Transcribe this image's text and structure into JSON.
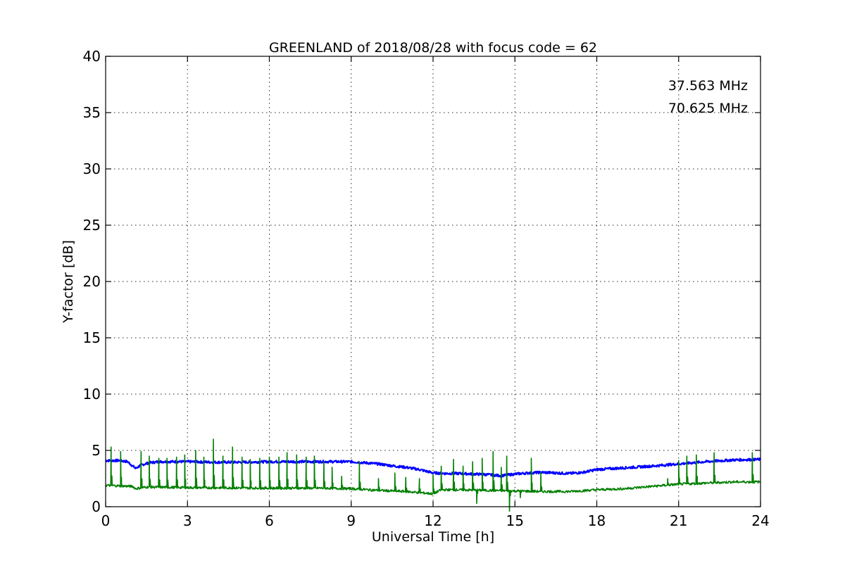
{
  "chart_data": {
    "type": "line",
    "title": "GREENLAND of 2018/08/28 with focus code = 62",
    "xlabel": "Universal Time [h]",
    "ylabel": "Y-factor [dB]",
    "xlim": [
      0,
      24
    ],
    "ylim": [
      0,
      40
    ],
    "x_ticks": [
      0,
      3,
      6,
      9,
      12,
      15,
      18,
      21,
      24
    ],
    "y_ticks": [
      0,
      5,
      10,
      15,
      20,
      25,
      30,
      35,
      40
    ],
    "grid": true,
    "legend_position": "top-right",
    "series": [
      {
        "name": "37.563 MHz",
        "color": "#0000ff",
        "x": [
          0.0,
          0.5,
          0.8,
          1.0,
          1.1,
          1.3,
          1.6,
          2.0,
          3.0,
          4.0,
          5.0,
          6.0,
          7.0,
          8.0,
          9.0,
          10.0,
          10.6,
          11.0,
          11.5,
          12.0,
          12.5,
          13.0,
          13.5,
          14.0,
          14.5,
          15.0,
          15.5,
          16.0,
          16.5,
          17.0,
          17.5,
          18.0,
          19.0,
          20.0,
          21.0,
          22.0,
          23.0,
          24.0
        ],
        "y": [
          4.1,
          4.1,
          4.0,
          3.6,
          3.4,
          3.7,
          3.9,
          4.0,
          4.0,
          3.95,
          3.95,
          4.0,
          4.0,
          4.0,
          4.0,
          3.8,
          3.6,
          3.5,
          3.3,
          3.0,
          2.95,
          2.95,
          2.9,
          2.85,
          2.75,
          2.9,
          3.0,
          3.05,
          3.0,
          2.95,
          3.05,
          3.3,
          3.45,
          3.6,
          3.8,
          4.0,
          4.15,
          4.2
        ]
      },
      {
        "name": "70.625 MHz",
        "color": "#007f00",
        "x": [
          0.0,
          0.5,
          1.0,
          1.1,
          1.5,
          3.0,
          6.0,
          8.0,
          9.0,
          10.0,
          11.0,
          11.5,
          12.0,
          12.3,
          13.0,
          14.0,
          15.0,
          16.0,
          17.0,
          18.0,
          19.0,
          20.0,
          21.0,
          22.0,
          23.0,
          24.0
        ],
        "y": [
          1.9,
          1.85,
          1.8,
          1.6,
          1.75,
          1.7,
          1.65,
          1.65,
          1.6,
          1.45,
          1.35,
          1.25,
          1.15,
          1.5,
          1.5,
          1.45,
          1.4,
          1.35,
          1.35,
          1.5,
          1.6,
          1.8,
          2.0,
          2.1,
          2.2,
          2.2
        ],
        "spikes": [
          {
            "x": 0.2,
            "y": 5.3
          },
          {
            "x": 0.55,
            "y": 4.9
          },
          {
            "x": 1.3,
            "y": 4.9
          },
          {
            "x": 1.6,
            "y": 4.5
          },
          {
            "x": 1.95,
            "y": 4.3
          },
          {
            "x": 2.25,
            "y": 4.3
          },
          {
            "x": 2.6,
            "y": 4.4
          },
          {
            "x": 2.9,
            "y": 4.6
          },
          {
            "x": 3.3,
            "y": 5.0
          },
          {
            "x": 3.6,
            "y": 4.4
          },
          {
            "x": 3.95,
            "y": 6.0
          },
          {
            "x": 4.3,
            "y": 4.5
          },
          {
            "x": 4.65,
            "y": 5.3
          },
          {
            "x": 5.0,
            "y": 4.4
          },
          {
            "x": 5.3,
            "y": 4.2
          },
          {
            "x": 5.65,
            "y": 4.3
          },
          {
            "x": 6.0,
            "y": 4.4
          },
          {
            "x": 6.35,
            "y": 4.4
          },
          {
            "x": 6.65,
            "y": 4.8
          },
          {
            "x": 7.0,
            "y": 4.6
          },
          {
            "x": 7.35,
            "y": 4.4
          },
          {
            "x": 7.65,
            "y": 4.5
          },
          {
            "x": 8.0,
            "y": 4.0
          },
          {
            "x": 8.3,
            "y": 3.5
          },
          {
            "x": 8.65,
            "y": 2.7
          },
          {
            "x": 9.3,
            "y": 4.0
          },
          {
            "x": 10.0,
            "y": 2.5
          },
          {
            "x": 10.6,
            "y": 3.0
          },
          {
            "x": 11.0,
            "y": 2.6
          },
          {
            "x": 11.5,
            "y": 2.5
          },
          {
            "x": 12.0,
            "y": 2.8
          },
          {
            "x": 12.3,
            "y": 3.6
          },
          {
            "x": 12.75,
            "y": 4.2
          },
          {
            "x": 13.1,
            "y": 3.6
          },
          {
            "x": 13.45,
            "y": 4.0
          },
          {
            "x": 13.8,
            "y": 4.3
          },
          {
            "x": 14.2,
            "y": 4.9
          },
          {
            "x": 14.5,
            "y": 3.5
          },
          {
            "x": 14.7,
            "y": 4.5
          },
          {
            "x": 15.6,
            "y": 4.3
          },
          {
            "x": 15.95,
            "y": 3.0
          },
          {
            "x": 20.6,
            "y": 2.5
          },
          {
            "x": 21.0,
            "y": 4.1
          },
          {
            "x": 21.3,
            "y": 4.5
          },
          {
            "x": 21.65,
            "y": 4.6
          },
          {
            "x": 22.3,
            "y": 4.8
          },
          {
            "x": 23.7,
            "y": 4.8
          }
        ],
        "dips": [
          {
            "x": 13.6,
            "y": 0.3
          },
          {
            "x": 14.8,
            "y": -0.4
          },
          {
            "x": 15.2,
            "y": 0.8
          }
        ]
      }
    ],
    "legend": [
      {
        "label": "37.563 MHz",
        "color": "#0000ff"
      },
      {
        "label": "70.625 MHz",
        "color": "#007f00"
      }
    ]
  }
}
